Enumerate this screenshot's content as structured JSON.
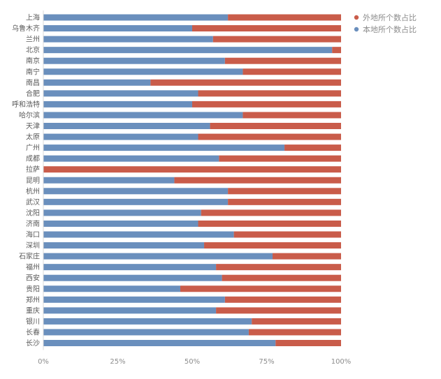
{
  "chart_data": {
    "type": "bar",
    "orientation": "horizontal",
    "stacked": "percent",
    "categories": [
      "上海",
      "乌鲁木齐",
      "兰州",
      "北京",
      "南京",
      "南宁",
      "南昌",
      "合肥",
      "呼和浩特",
      "哈尔滨",
      "天津",
      "太原",
      "广州",
      "成都",
      "拉萨",
      "昆明",
      "杭州",
      "武汉",
      "沈阳",
      "济南",
      "海口",
      "深圳",
      "石家庄",
      "福州",
      "西安",
      "贵阳",
      "郑州",
      "重庆",
      "银川",
      "长春",
      "长沙"
    ],
    "series": [
      {
        "name": "本地所个数占比",
        "color": "#6a8fbd",
        "values": [
          0.62,
          0.5,
          0.57,
          0.97,
          0.61,
          0.67,
          0.36,
          0.52,
          0.5,
          0.67,
          0.56,
          0.52,
          0.81,
          0.59,
          0.0,
          0.44,
          0.62,
          0.62,
          0.53,
          0.52,
          0.64,
          0.54,
          0.77,
          0.58,
          0.6,
          0.46,
          0.61,
          0.58,
          0.7,
          0.69,
          0.78
        ]
      },
      {
        "name": "外地所个数占比",
        "color": "#c95c4a",
        "values": [
          0.38,
          0.5,
          0.43,
          0.03,
          0.39,
          0.33,
          0.64,
          0.48,
          0.5,
          0.33,
          0.44,
          0.48,
          0.19,
          0.41,
          1.0,
          0.56,
          0.38,
          0.38,
          0.47,
          0.48,
          0.36,
          0.46,
          0.23,
          0.42,
          0.4,
          0.54,
          0.39,
          0.42,
          0.3,
          0.31,
          0.22
        ]
      }
    ],
    "legend_order": [
      1,
      0
    ],
    "xlim": [
      0,
      1
    ],
    "xticks": [
      "0%",
      "25%",
      "50%",
      "75%",
      "100%"
    ],
    "legend_position": "top-right",
    "grid": false
  }
}
